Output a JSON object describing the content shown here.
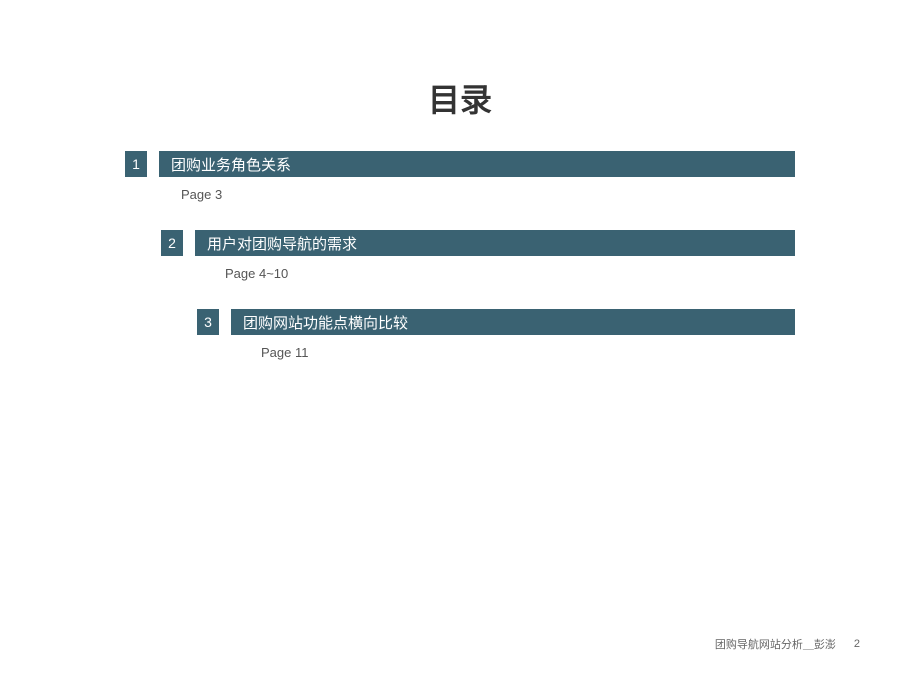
{
  "title": "目录",
  "toc": {
    "items": [
      {
        "number": "1",
        "label": "团购业务角色关系",
        "page": "Page 3"
      },
      {
        "number": "2",
        "label": "用户对团购导航的需求",
        "page": "Page 4~10"
      },
      {
        "number": "3",
        "label": "团购网站功能点横向比较",
        "page": "Page 11"
      }
    ]
  },
  "footer": {
    "text": "团购导航网站分析＿彭澎",
    "page_number": "2"
  },
  "colors": {
    "bar_bg": "#3a6272",
    "bar_text": "#ffffff",
    "title_text": "#333333",
    "page_text": "#555555",
    "footer_text": "#666666",
    "background": "#ffffff"
  }
}
